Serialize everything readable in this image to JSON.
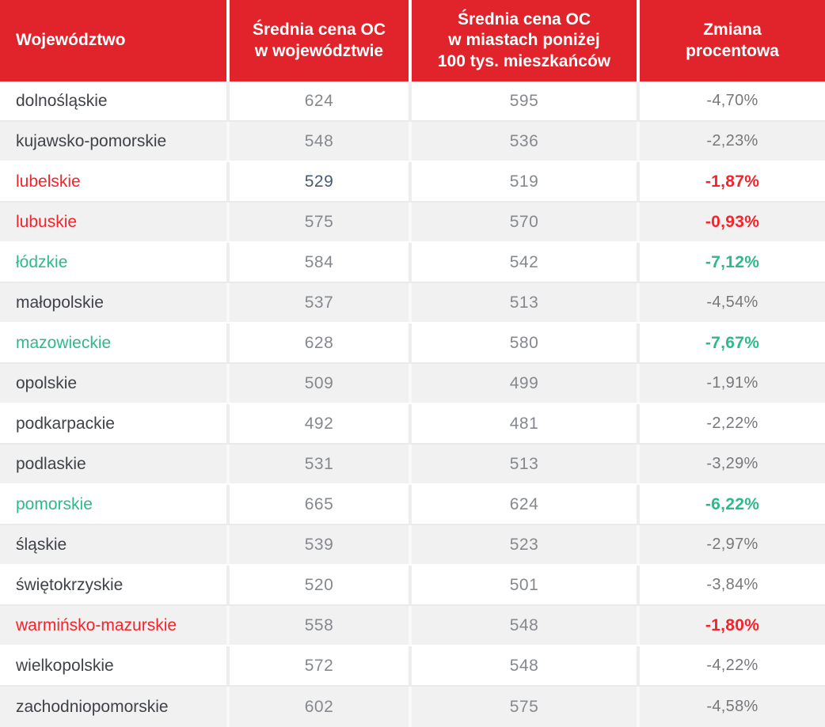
{
  "colors": {
    "header_bg": "#e1242b",
    "red": "#f5232a",
    "green": "#2db98b",
    "name": "#3f4247",
    "value": "#85898e",
    "percent": "#76787b",
    "alt_row_bg": "#f1f1f2",
    "dark_value": "#475a6d"
  },
  "chart_data": {
    "type": "table",
    "columns": [
      "Województwo",
      "Średnia cena OC\nw województwie",
      "Średnia cena OC\nw miastach poniżej\n100 tys. mieszkańców",
      "Zmiana\nprocentowa"
    ],
    "rows": [
      {
        "name": "dolnośląskie",
        "avg_price_voivodeship": "624",
        "avg_price_small_cities": "595",
        "change_percent": "-4,70%",
        "highlight": "none"
      },
      {
        "name": "kujawsko-pomorskie",
        "avg_price_voivodeship": "548",
        "avg_price_small_cities": "536",
        "change_percent": "-2,23%",
        "highlight": "none"
      },
      {
        "name": "lubelskie",
        "avg_price_voivodeship": "529",
        "avg_price_small_cities": "519",
        "change_percent": "-1,87%",
        "highlight": "red",
        "price_emphasis": true
      },
      {
        "name": "lubuskie",
        "avg_price_voivodeship": "575",
        "avg_price_small_cities": "570",
        "change_percent": "-0,93%",
        "highlight": "red"
      },
      {
        "name": "łódzkie",
        "avg_price_voivodeship": "584",
        "avg_price_small_cities": "542",
        "change_percent": "-7,12%",
        "highlight": "green"
      },
      {
        "name": "małopolskie",
        "avg_price_voivodeship": "537",
        "avg_price_small_cities": "513",
        "change_percent": "-4,54%",
        "highlight": "none"
      },
      {
        "name": "mazowieckie",
        "avg_price_voivodeship": "628",
        "avg_price_small_cities": "580",
        "change_percent": "-7,67%",
        "highlight": "green"
      },
      {
        "name": "opolskie",
        "avg_price_voivodeship": "509",
        "avg_price_small_cities": "499",
        "change_percent": "-1,91%",
        "highlight": "none"
      },
      {
        "name": "podkarpackie",
        "avg_price_voivodeship": "492",
        "avg_price_small_cities": "481",
        "change_percent": "-2,22%",
        "highlight": "none"
      },
      {
        "name": "podlaskie",
        "avg_price_voivodeship": "531",
        "avg_price_small_cities": "513",
        "change_percent": "-3,29%",
        "highlight": "none"
      },
      {
        "name": "pomorskie",
        "avg_price_voivodeship": "665",
        "avg_price_small_cities": "624",
        "change_percent": "-6,22%",
        "highlight": "green"
      },
      {
        "name": "śląskie",
        "avg_price_voivodeship": "539",
        "avg_price_small_cities": "523",
        "change_percent": "-2,97%",
        "highlight": "none"
      },
      {
        "name": "świętokrzyskie",
        "avg_price_voivodeship": "520",
        "avg_price_small_cities": "501",
        "change_percent": "-3,84%",
        "highlight": "none"
      },
      {
        "name": "warmińsko-mazurskie",
        "avg_price_voivodeship": "558",
        "avg_price_small_cities": "548",
        "change_percent": "-1,80%",
        "highlight": "red"
      },
      {
        "name": "wielkopolskie",
        "avg_price_voivodeship": "572",
        "avg_price_small_cities": "548",
        "change_percent": "-4,22%",
        "highlight": "none"
      },
      {
        "name": "zachodniopomorskie",
        "avg_price_voivodeship": "602",
        "avg_price_small_cities": "575",
        "change_percent": "-4,58%",
        "highlight": "none"
      }
    ]
  }
}
